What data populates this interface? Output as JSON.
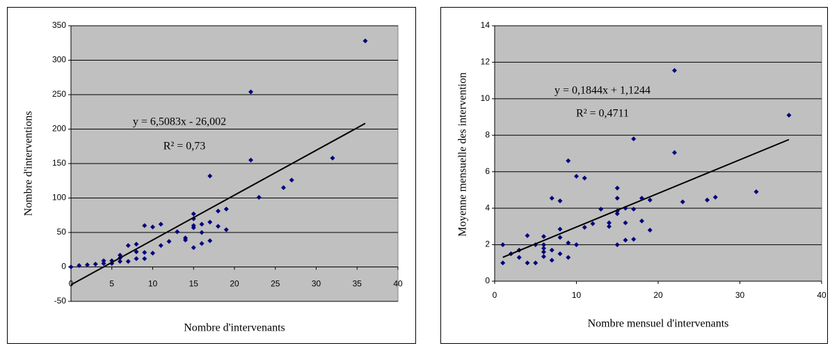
{
  "chart_data": [
    {
      "type": "scatter",
      "color": "#000080",
      "x": [
        0,
        1,
        2,
        3,
        4,
        4,
        5,
        5,
        6,
        6,
        6,
        7,
        7,
        8,
        8,
        8,
        9,
        9,
        9,
        10,
        10,
        11,
        11,
        12,
        13,
        14,
        14,
        15,
        15,
        15,
        15,
        15,
        16,
        16,
        16,
        17,
        17,
        17,
        18,
        18,
        19,
        19,
        22,
        22,
        23,
        26,
        27,
        32,
        36
      ],
      "values": [
        0,
        2,
        3,
        4,
        5,
        9,
        5,
        9,
        8,
        13,
        17,
        8,
        31,
        12,
        22,
        33,
        12,
        21,
        60,
        20,
        58,
        31,
        62,
        37,
        51,
        42,
        39,
        60,
        70,
        77,
        57,
        28,
        34,
        50,
        62,
        132,
        65,
        38,
        59,
        81,
        84,
        54,
        155,
        254,
        101,
        115,
        126,
        158,
        328
      ],
      "xlim": [
        0,
        40
      ],
      "ylim": [
        -50,
        350
      ],
      "xticks": [
        0,
        5,
        10,
        15,
        20,
        25,
        30,
        35,
        40
      ],
      "yticks": [
        -50,
        0,
        50,
        100,
        150,
        200,
        250,
        300,
        350
      ],
      "grid": true,
      "x_label": "Nombre d'intervenants",
      "y_label": "Nombre d'interventions",
      "trendline": {
        "slope": 6.5083,
        "intercept": -26.002,
        "equation": "y = 6,5083x - 26,002",
        "r2_label": "R² = 0,73"
      }
    },
    {
      "type": "scatter",
      "color": "#000080",
      "x": [
        1,
        1,
        2,
        3,
        3,
        4,
        4,
        5,
        5,
        6,
        6,
        6,
        6,
        6,
        7,
        7,
        7,
        8,
        8,
        8,
        8,
        9,
        9,
        9,
        10,
        10,
        11,
        11,
        12,
        13,
        14,
        14,
        15,
        15,
        15,
        15,
        15,
        16,
        16,
        16,
        17,
        17,
        17,
        18,
        18,
        19,
        19,
        22,
        22,
        23,
        26,
        27,
        32,
        36
      ],
      "values": [
        1.0,
        2.0,
        1.5,
        1.3,
        1.7,
        1.0,
        2.5,
        1.0,
        2.0,
        2.0,
        1.8,
        1.6,
        1.35,
        2.45,
        1.15,
        1.7,
        4.55,
        1.5,
        2.4,
        2.85,
        4.4,
        1.3,
        2.1,
        6.6,
        2.0,
        5.75,
        2.95,
        5.65,
        3.15,
        3.95,
        3.0,
        3.2,
        2.0,
        3.7,
        3.85,
        4.55,
        5.1,
        2.25,
        3.2,
        4.0,
        2.3,
        3.95,
        7.8,
        3.3,
        4.55,
        2.8,
        4.45,
        7.05,
        11.55,
        4.35,
        4.45,
        4.6,
        4.9,
        9.1
      ],
      "xlim": [
        0,
        40
      ],
      "ylim": [
        0,
        14
      ],
      "xticks": [
        0,
        10,
        20,
        30,
        40
      ],
      "yticks": [
        0,
        2,
        4,
        6,
        8,
        10,
        12,
        14
      ],
      "grid": true,
      "x_label": "Nombre mensuel d'intervenants",
      "y_label": "Moyenne mensuelle des intervention",
      "trendline": {
        "slope": 0.1844,
        "intercept": 1.1244,
        "equation": "y = 0,1844x + 1,1244",
        "r2_label": "R² = 0,4711"
      }
    }
  ]
}
